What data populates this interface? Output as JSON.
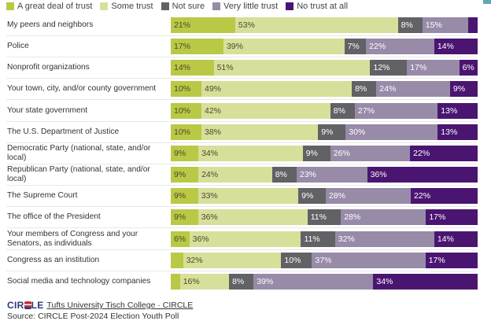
{
  "chart_data": {
    "type": "bar",
    "orientation": "horizontal",
    "stacked": true,
    "title": "",
    "xlabel": "",
    "ylabel": "",
    "xlim": [
      0,
      100
    ],
    "grid": false,
    "legend_position": "top-left",
    "categories": [
      "My peers and neighbors",
      "Police",
      "Nonprofit organizations",
      "Your town, city, and/or county government",
      "Your state government",
      "The U.S. Department of Justice",
      "Democratic Party (national, state, and/or local)",
      "Republican Party (national, state, and/or local)",
      "The Supreme Court",
      "The office of the President",
      "Your members of Congress and your Senators, as individuals",
      "Congress as an institution",
      "Social media and technology companies"
    ],
    "series": [
      {
        "name": "A great deal of trust",
        "color": "#b9c945",
        "text_color": "#4a4a2a",
        "values": [
          21,
          17,
          14,
          10,
          10,
          10,
          9,
          9,
          9,
          9,
          6,
          4,
          3
        ],
        "labels": [
          "21%",
          "17%",
          "14%",
          "10%",
          "10%",
          "10%",
          "9%",
          "9%",
          "9%",
          "9%",
          "6%",
          "",
          ""
        ]
      },
      {
        "name": "Some trust",
        "color": "#d8df9a",
        "text_color": "#4a4a2a",
        "values": [
          53,
          39,
          51,
          49,
          42,
          38,
          34,
          24,
          33,
          36,
          36,
          32,
          16
        ],
        "labels": [
          "53%",
          "39%",
          "51%",
          "49%",
          "42%",
          "38%",
          "34%",
          "24%",
          "33%",
          "36%",
          "36%",
          "32%",
          "16%"
        ]
      },
      {
        "name": "Not sure",
        "color": "#626166",
        "text_color": "#ffffff",
        "values": [
          8,
          7,
          12,
          8,
          8,
          9,
          9,
          8,
          9,
          11,
          11,
          10,
          8
        ],
        "labels": [
          "8%",
          "7%",
          "12%",
          "8%",
          "8%",
          "9%",
          "9%",
          "8%",
          "9%",
          "11%",
          "11%",
          "10%",
          "8%"
        ]
      },
      {
        "name": "Very little trust",
        "color": "#978ba8",
        "text_color": "#ffffff",
        "values": [
          15,
          22,
          17,
          24,
          27,
          30,
          26,
          23,
          28,
          28,
          32,
          37,
          39
        ],
        "labels": [
          "15%",
          "22%",
          "17%",
          "24%",
          "27%",
          "30%",
          "26%",
          "23%",
          "28%",
          "28%",
          "32%",
          "37%",
          "39%"
        ]
      },
      {
        "name": "No trust at all",
        "color": "#4a1571",
        "text_color": "#ffffff",
        "values": [
          3,
          14,
          6,
          9,
          13,
          13,
          22,
          36,
          22,
          17,
          14,
          17,
          34
        ],
        "labels": [
          "",
          "14%",
          "6%",
          "9%",
          "13%",
          "13%",
          "22%",
          "36%",
          "22%",
          "17%",
          "14%",
          "17%",
          "34%"
        ]
      }
    ]
  },
  "footer": {
    "logo_text_left": "CIR",
    "logo_text_right": "LE",
    "brand_link": "Tufts University Tisch College · CIRCLE",
    "source": "Source: CIRCLE Post-2024 Election Youth Poll"
  }
}
